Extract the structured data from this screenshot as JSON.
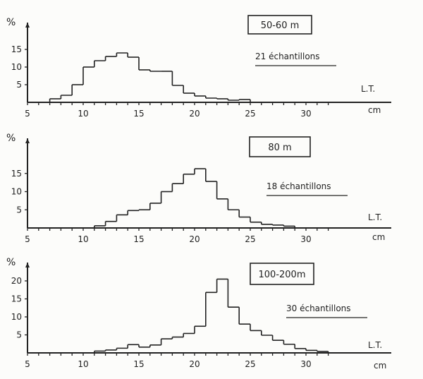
{
  "chart_data": [
    {
      "type": "bar",
      "histogram": true,
      "depth_label": "50-60 m",
      "samples_label": "21 échantillons",
      "ylabel": "%",
      "xlabel": "L.T.",
      "xunit": "cm",
      "xticks": [
        "5",
        "10",
        "15",
        "20",
        "25",
        "30"
      ],
      "yticks": [
        "5",
        "10",
        "15"
      ],
      "xlim": [
        5,
        33
      ],
      "ylim": [
        0,
        18
      ],
      "bin_width": 1,
      "x": [
        7,
        8,
        9,
        10,
        11,
        12,
        13,
        14,
        15,
        16,
        17,
        18,
        19,
        20,
        21,
        22,
        23,
        24
      ],
      "values": [
        1.0,
        2.0,
        5.0,
        10.0,
        11.8,
        13.0,
        14.0,
        12.8,
        9.2,
        8.8,
        8.8,
        4.8,
        2.6,
        1.8,
        1.2,
        1.0,
        0.6,
        0.8
      ]
    },
    {
      "type": "bar",
      "histogram": true,
      "depth_label": "80 m",
      "samples_label": "18 échantillons",
      "ylabel": "%",
      "xlabel": "L.T.",
      "xunit": "cm",
      "xticks": [
        "5",
        "10",
        "15",
        "20",
        "25",
        "30"
      ],
      "yticks": [
        "5",
        "10",
        "15"
      ],
      "xlim": [
        5,
        33
      ],
      "ylim": [
        0,
        18
      ],
      "bin_width": 1,
      "x": [
        11,
        12,
        13,
        14,
        15,
        16,
        17,
        18,
        19,
        20,
        21,
        22,
        23,
        24,
        25,
        26,
        27,
        28
      ],
      "values": [
        0.6,
        1.8,
        3.6,
        4.8,
        5.0,
        6.8,
        10.0,
        12.2,
        14.8,
        16.3,
        12.8,
        8.0,
        5.0,
        3.0,
        1.6,
        1.0,
        0.8,
        0.5
      ]
    },
    {
      "type": "bar",
      "histogram": true,
      "depth_label": "100-200m",
      "samples_label": "30 échantillons",
      "ylabel": "%",
      "xlabel": "L.T.",
      "xunit": "cm",
      "xticks": [
        "5",
        "10",
        "15",
        "20",
        "25",
        "30"
      ],
      "yticks": [
        "5",
        "10",
        "15",
        "20"
      ],
      "xlim": [
        5,
        33
      ],
      "ylim": [
        0,
        22
      ],
      "bin_width": 1,
      "x": [
        11,
        12,
        13,
        14,
        15,
        16,
        17,
        18,
        19,
        20,
        21,
        22,
        23,
        24,
        25,
        26,
        27,
        28,
        29,
        30,
        31
      ],
      "values": [
        0.5,
        0.8,
        1.3,
        2.3,
        1.6,
        2.2,
        3.9,
        4.4,
        5.4,
        7.4,
        16.8,
        20.5,
        12.7,
        8.0,
        6.2,
        4.9,
        3.5,
        2.4,
        1.2,
        0.7,
        0.4
      ]
    }
  ]
}
